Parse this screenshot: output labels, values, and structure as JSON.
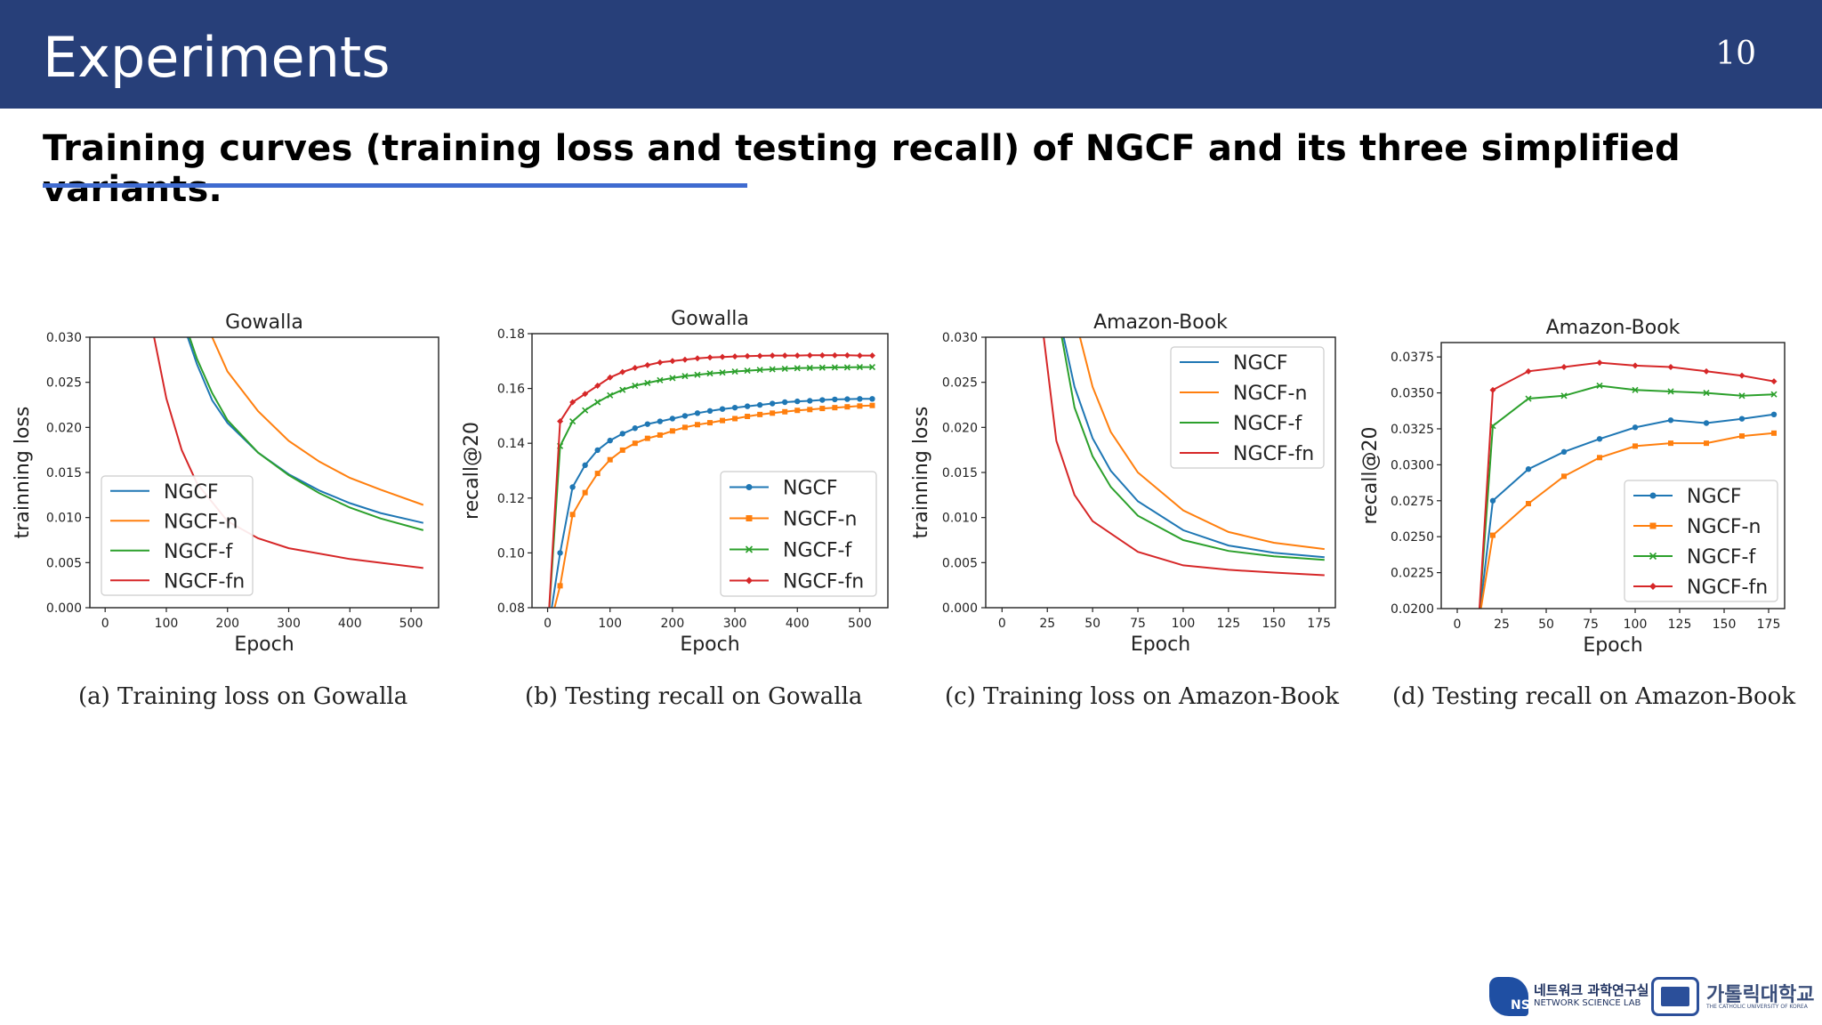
{
  "header": {
    "title": "Experiments",
    "page_number": "10"
  },
  "subtitle": "Training curves (training loss and testing recall) of NGCF and its three simplified variants.",
  "colors": {
    "header_bg": "#273f79",
    "underline": "#3f6bd0",
    "NGCF": "#1f77b4",
    "NGCF-n": "#ff7f0e",
    "NGCF-f": "#2ca02c",
    "NGCF-fn": "#d62728"
  },
  "captions": [
    "(a)  Training loss on Gowalla",
    "(b)  Testing recall on Gowalla",
    "(c)  Training loss on Amazon-Book",
    "(d)  Testing recall on Amazon-Book"
  ],
  "footer": {
    "lab_name_kr": "네트워크 과학연구실",
    "lab_name_en": "NETWORK SCIENCE LAB",
    "lab_logo_text": "NS",
    "univ_name_kr": "가톨릭대학교",
    "univ_name_en": "THE CATHOLIC UNIVERSITY OF KOREA"
  },
  "chart_data": [
    {
      "type": "line",
      "title": "Gowalla",
      "xlabel": "Epoch",
      "ylabel": "trainning loss",
      "xlim": [
        -25,
        545
      ],
      "ylim": [
        0,
        0.03
      ],
      "xticks": [
        0,
        100,
        200,
        300,
        400,
        500
      ],
      "xtick_labels": [
        "0",
        "100",
        "200",
        "300",
        "400",
        "500"
      ],
      "yticks": [
        0,
        0.005,
        0.01,
        0.015,
        0.02,
        0.025,
        0.03
      ],
      "ytick_labels": [
        "0.000",
        "0.005",
        "0.010",
        "0.015",
        "0.020",
        "0.025",
        "0.030"
      ],
      "markers": false,
      "legend_position": "lower-left",
      "series": [
        {
          "name": "NGCF",
          "x": [
            0,
            135,
            150,
            175,
            200,
            250,
            300,
            350,
            400,
            450,
            520
          ],
          "y": [
            0.034,
            0.03,
            0.027,
            0.023,
            0.0205,
            0.0172,
            0.0148,
            0.013,
            0.0116,
            0.0105,
            0.0094
          ]
        },
        {
          "name": "NGCF-n",
          "x": [
            0,
            175,
            200,
            250,
            300,
            350,
            400,
            450,
            520
          ],
          "y": [
            0.034,
            0.03,
            0.0262,
            0.0218,
            0.0185,
            0.0162,
            0.0144,
            0.0131,
            0.0114
          ]
        },
        {
          "name": "NGCF-f",
          "x": [
            0,
            138,
            150,
            175,
            200,
            250,
            300,
            350,
            400,
            450,
            520
          ],
          "y": [
            0.034,
            0.03,
            0.0276,
            0.0238,
            0.0208,
            0.0172,
            0.0147,
            0.0127,
            0.0111,
            0.0099,
            0.0086
          ]
        },
        {
          "name": "NGCF-fn",
          "x": [
            0,
            80,
            100,
            125,
            150,
            200,
            250,
            300,
            400,
            520
          ],
          "y": [
            0.034,
            0.03,
            0.0232,
            0.0175,
            0.0138,
            0.0096,
            0.0077,
            0.0066,
            0.0054,
            0.0044
          ]
        }
      ]
    },
    {
      "type": "line",
      "title": "Gowalla",
      "xlabel": "Epoch",
      "ylabel": "recall@20",
      "xlim": [
        -25,
        545
      ],
      "ylim": [
        0.08,
        0.18
      ],
      "xticks": [
        0,
        100,
        200,
        300,
        400,
        500
      ],
      "xtick_labels": [
        "0",
        "100",
        "200",
        "300",
        "400",
        "500"
      ],
      "yticks": [
        0.08,
        0.1,
        0.12,
        0.14,
        0.16,
        0.18
      ],
      "ytick_labels": [
        "0.08",
        "0.10",
        "0.12",
        "0.14",
        "0.16",
        "0.18"
      ],
      "markers": true,
      "legend_position": "lower-right",
      "series": [
        {
          "name": "NGCF",
          "x": [
            0,
            20,
            40,
            60,
            80,
            100,
            120,
            140,
            160,
            180,
            200,
            220,
            240,
            260,
            280,
            300,
            320,
            340,
            360,
            380,
            400,
            420,
            440,
            460,
            480,
            500,
            520
          ],
          "y": [
            0.07,
            0.1,
            0.124,
            0.132,
            0.1375,
            0.141,
            0.1435,
            0.1455,
            0.147,
            0.148,
            0.149,
            0.15,
            0.151,
            0.1518,
            0.1525,
            0.153,
            0.1535,
            0.154,
            0.1545,
            0.155,
            0.1553,
            0.1555,
            0.1558,
            0.156,
            0.1561,
            0.1562,
            0.1562
          ]
        },
        {
          "name": "NGCF-n",
          "x": [
            0,
            20,
            40,
            60,
            80,
            100,
            120,
            140,
            160,
            180,
            200,
            220,
            240,
            260,
            280,
            300,
            320,
            340,
            360,
            380,
            400,
            420,
            440,
            460,
            480,
            500,
            520
          ],
          "y": [
            0.07,
            0.088,
            0.114,
            0.122,
            0.129,
            0.134,
            0.1375,
            0.14,
            0.1418,
            0.143,
            0.1445,
            0.1458,
            0.1468,
            0.1475,
            0.1483,
            0.149,
            0.1498,
            0.1505,
            0.151,
            0.1515,
            0.152,
            0.1523,
            0.1527,
            0.153,
            0.1533,
            0.1536,
            0.1538
          ]
        },
        {
          "name": "NGCF-f",
          "x": [
            0,
            20,
            40,
            60,
            80,
            100,
            120,
            140,
            160,
            180,
            200,
            220,
            240,
            260,
            280,
            300,
            320,
            340,
            360,
            380,
            400,
            420,
            440,
            460,
            480,
            500,
            520
          ],
          "y": [
            0.07,
            0.139,
            0.148,
            0.152,
            0.155,
            0.1575,
            0.1595,
            0.161,
            0.162,
            0.163,
            0.1638,
            0.1645,
            0.165,
            0.1655,
            0.1658,
            0.1662,
            0.1665,
            0.1668,
            0.167,
            0.1672,
            0.1674,
            0.1675,
            0.1676,
            0.1677,
            0.1677,
            0.1678,
            0.1678
          ]
        },
        {
          "name": "NGCF-fn",
          "x": [
            0,
            20,
            40,
            60,
            80,
            100,
            120,
            140,
            160,
            180,
            200,
            220,
            240,
            260,
            280,
            300,
            320,
            340,
            360,
            380,
            400,
            420,
            440,
            460,
            480,
            500,
            520
          ],
          "y": [
            0.07,
            0.148,
            0.155,
            0.158,
            0.161,
            0.164,
            0.166,
            0.1675,
            0.1685,
            0.1695,
            0.17,
            0.1705,
            0.171,
            0.1713,
            0.1715,
            0.1717,
            0.1718,
            0.1719,
            0.172,
            0.172,
            0.172,
            0.1721,
            0.1721,
            0.1721,
            0.1721,
            0.172,
            0.172
          ]
        }
      ]
    },
    {
      "type": "line",
      "title": "Amazon-Book",
      "xlabel": "Epoch",
      "ylabel": "trainning loss",
      "xlim": [
        -9,
        184
      ],
      "ylim": [
        0,
        0.03
      ],
      "xticks": [
        0,
        25,
        50,
        75,
        100,
        125,
        150,
        175
      ],
      "xtick_labels": [
        "0",
        "25",
        "50",
        "75",
        "100",
        "125",
        "150",
        "175"
      ],
      "yticks": [
        0,
        0.005,
        0.01,
        0.015,
        0.02,
        0.025,
        0.03
      ],
      "ytick_labels": [
        "0.000",
        "0.005",
        "0.010",
        "0.015",
        "0.020",
        "0.025",
        "0.030"
      ],
      "markers": false,
      "legend_position": "upper-right",
      "series": [
        {
          "name": "NGCF",
          "x": [
            0,
            34,
            40,
            50,
            60,
            75,
            100,
            125,
            150,
            178
          ],
          "y": [
            0.034,
            0.03,
            0.0245,
            0.0188,
            0.0152,
            0.0118,
            0.0086,
            0.0069,
            0.0061,
            0.0056
          ]
        },
        {
          "name": "NGCF-n",
          "x": [
            0,
            43,
            50,
            60,
            75,
            100,
            125,
            150,
            178
          ],
          "y": [
            0.034,
            0.03,
            0.0245,
            0.0195,
            0.015,
            0.0108,
            0.0084,
            0.0072,
            0.0065
          ]
        },
        {
          "name": "NGCF-f",
          "x": [
            0,
            33,
            40,
            50,
            60,
            75,
            100,
            125,
            150,
            178
          ],
          "y": [
            0.034,
            0.03,
            0.0222,
            0.0168,
            0.0134,
            0.0102,
            0.0075,
            0.0063,
            0.0057,
            0.0053
          ]
        },
        {
          "name": "NGCF-fn",
          "x": [
            0,
            23,
            30,
            40,
            50,
            75,
            100,
            125,
            150,
            178
          ],
          "y": [
            0.034,
            0.03,
            0.0185,
            0.0125,
            0.0096,
            0.0062,
            0.0047,
            0.0042,
            0.0039,
            0.0036
          ]
        }
      ]
    },
    {
      "type": "line",
      "title": "Amazon-Book",
      "xlabel": "Epoch",
      "ylabel": "recall@20",
      "xlim": [
        -9,
        184
      ],
      "ylim": [
        0.02,
        0.0385
      ],
      "xticks": [
        0,
        25,
        50,
        75,
        100,
        125,
        150,
        175
      ],
      "xtick_labels": [
        "0",
        "25",
        "50",
        "75",
        "100",
        "125",
        "150",
        "175"
      ],
      "yticks": [
        0.02,
        0.0225,
        0.025,
        0.0275,
        0.03,
        0.0325,
        0.035,
        0.0375
      ],
      "ytick_labels": [
        "0.0200",
        "0.0225",
        "0.0250",
        "0.0275",
        "0.0300",
        "0.0325",
        "0.0350",
        "0.0375"
      ],
      "markers": true,
      "legend_position": "lower-right",
      "series": [
        {
          "name": "NGCF",
          "x": [
            12,
            20,
            40,
            60,
            80,
            100,
            120,
            140,
            160,
            178
          ],
          "y": [
            0.019,
            0.0275,
            0.0297,
            0.0309,
            0.0318,
            0.0326,
            0.0331,
            0.0329,
            0.0332,
            0.0335
          ]
        },
        {
          "name": "NGCF-n",
          "x": [
            12,
            20,
            40,
            60,
            80,
            100,
            120,
            140,
            160,
            178
          ],
          "y": [
            0.019,
            0.0251,
            0.0273,
            0.0292,
            0.0305,
            0.0313,
            0.0315,
            0.0315,
            0.032,
            0.0322
          ]
        },
        {
          "name": "NGCF-f",
          "x": [
            12,
            20,
            40,
            60,
            80,
            100,
            120,
            140,
            160,
            178
          ],
          "y": [
            0.019,
            0.0327,
            0.0346,
            0.0348,
            0.0355,
            0.0352,
            0.0351,
            0.035,
            0.0348,
            0.0349
          ]
        },
        {
          "name": "NGCF-fn",
          "x": [
            12,
            20,
            40,
            60,
            80,
            100,
            120,
            140,
            160,
            178
          ],
          "y": [
            0.019,
            0.0352,
            0.0365,
            0.0368,
            0.0371,
            0.0369,
            0.0368,
            0.0365,
            0.0362,
            0.0358
          ]
        }
      ]
    }
  ]
}
